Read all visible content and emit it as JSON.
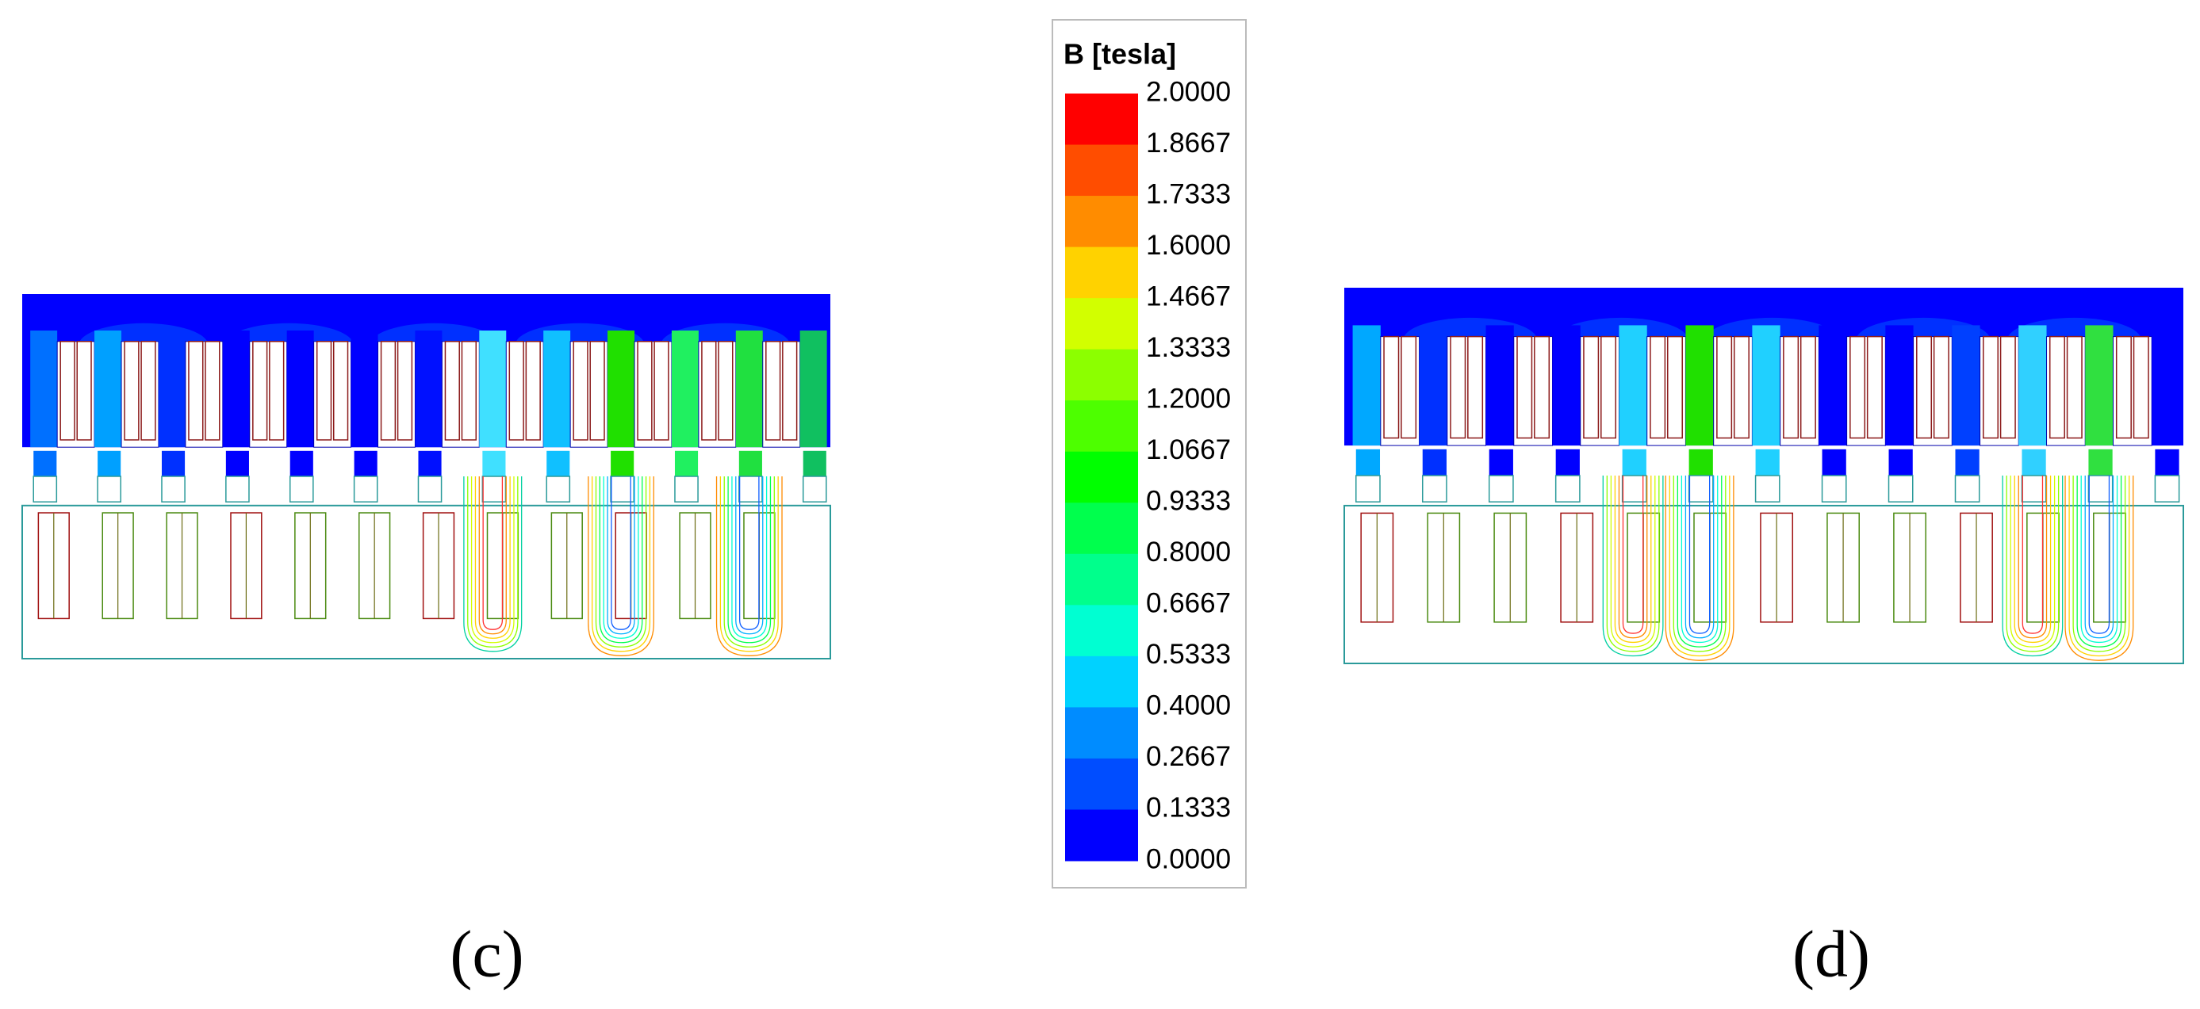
{
  "legend": {
    "title": "B [tesla]",
    "levels": [
      "2.0000",
      "1.8667",
      "1.7333",
      "1.6000",
      "1.4667",
      "1.3333",
      "1.2000",
      "1.0667",
      "0.9333",
      "0.8000",
      "0.6667",
      "0.5333",
      "0.4000",
      "0.2667",
      "0.1333",
      "0.0000"
    ],
    "colors": [
      "#ff0000",
      "#ff4d00",
      "#ff8c00",
      "#ffd200",
      "#d2ff00",
      "#8cff00",
      "#4dff00",
      "#00ff00",
      "#00ff4d",
      "#00ff8c",
      "#00ffd2",
      "#00d2ff",
      "#008cff",
      "#004dff",
      "#0000ff"
    ]
  },
  "panels": [
    {
      "label": "(c)"
    },
    {
      "label": "(d)"
    }
  ]
}
